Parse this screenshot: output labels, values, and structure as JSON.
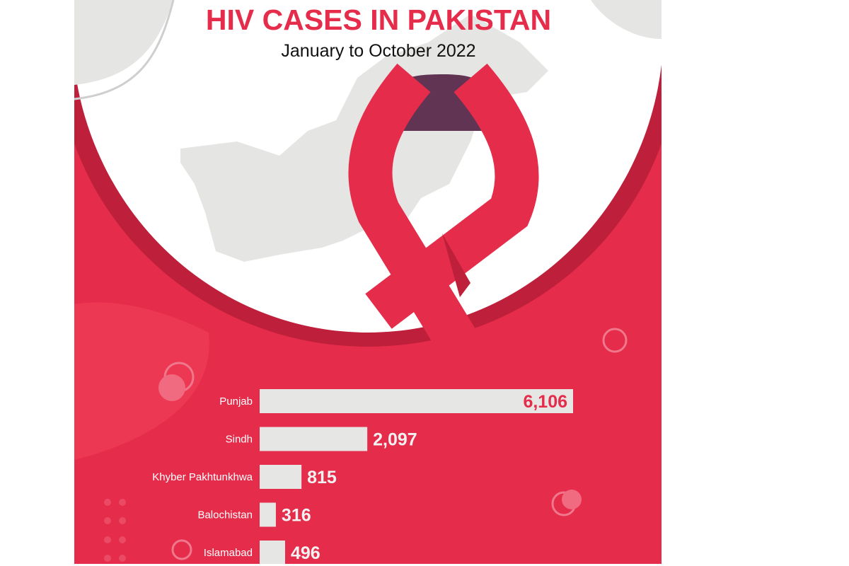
{
  "title": "HIV CASES IN PAKISTAN",
  "subtitle": "January to October 2022",
  "colors": {
    "primary_red": "#e52c4b",
    "dark_red": "#be1f3a",
    "ribbon_loop": "#613453",
    "bar": "#e6e6e4",
    "map_gray": "#e5e5e3"
  },
  "chart_data": {
    "type": "bar",
    "orientation": "horizontal",
    "title": "HIV CASES IN PAKISTAN",
    "subtitle": "January to October 2022",
    "categories": [
      "Punjab",
      "Sindh",
      "Khyber Pakhtunkhwa",
      "Balochistan",
      "Islamabad"
    ],
    "values": [
      6106,
      2097,
      815,
      316,
      496
    ],
    "value_labels": [
      "6,106",
      "2,097",
      "815",
      "316",
      "496"
    ],
    "grid": false,
    "axes_visible": false
  }
}
